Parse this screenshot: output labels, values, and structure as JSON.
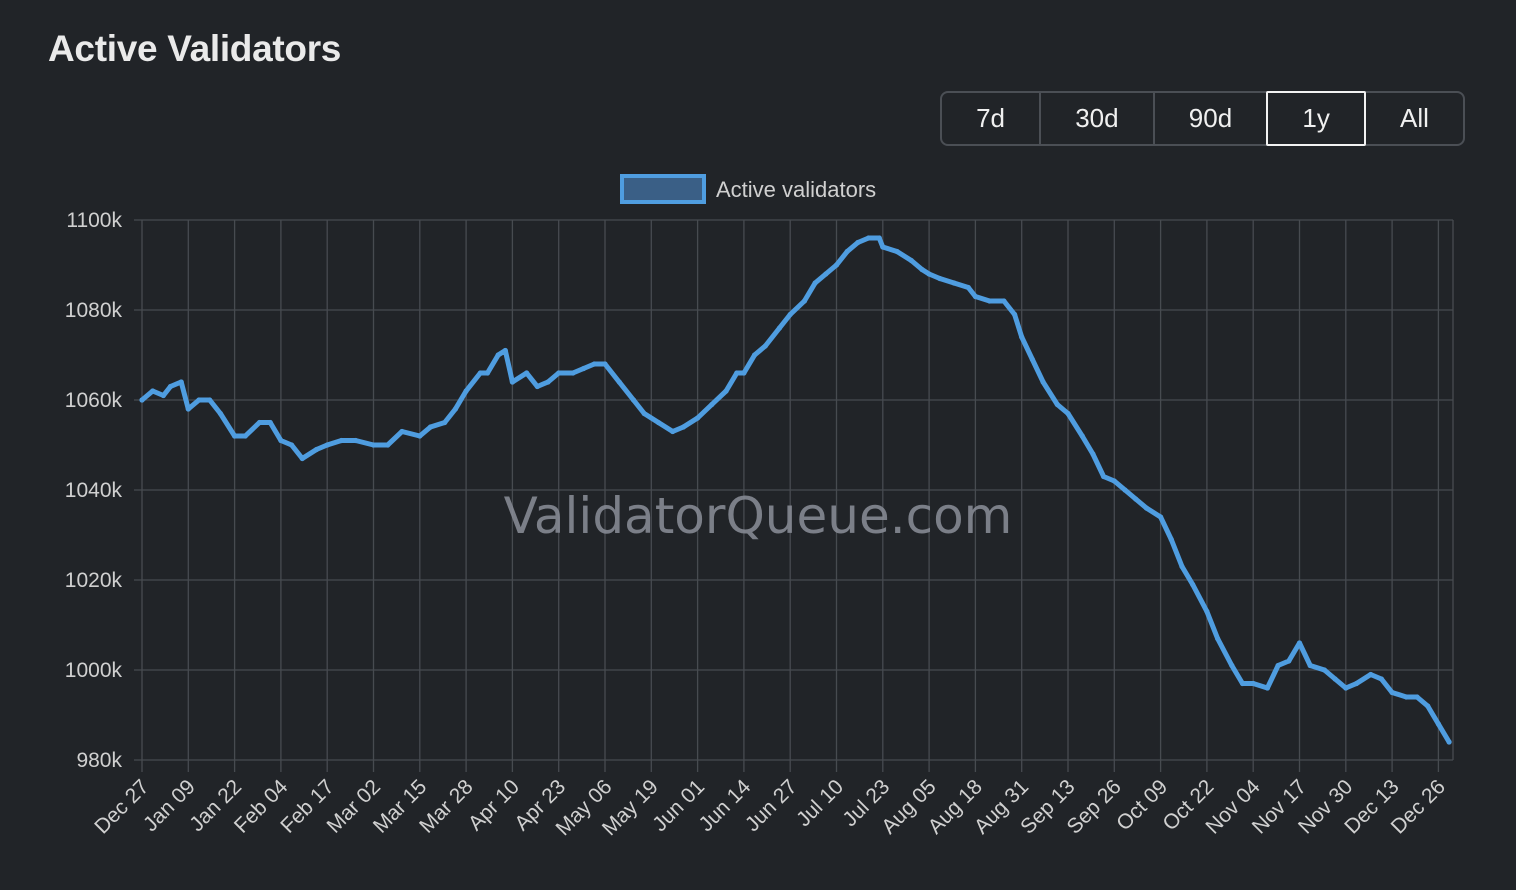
{
  "title": "Active Validators",
  "ranges": [
    {
      "label": "7d",
      "active": false
    },
    {
      "label": "30d",
      "active": false
    },
    {
      "label": "90d",
      "active": false
    },
    {
      "label": "1y",
      "active": true
    },
    {
      "label": "All",
      "active": false
    }
  ],
  "watermark": "ValidatorQueue.com",
  "colors": {
    "background": "#212428",
    "series_line": "#4f9de0",
    "legend_fill": "#3a5f86",
    "grid": "#474b50",
    "text": "#d0d0d0"
  },
  "chart_data": {
    "type": "line",
    "legend_position": "top-center",
    "grid": true,
    "ylim": [
      980,
      1100
    ],
    "y_ticks": [
      "1100k",
      "1080k",
      "1060k",
      "1040k",
      "1020k",
      "1000k",
      "980k"
    ],
    "y_tick_values": [
      1100,
      1080,
      1060,
      1040,
      1020,
      1000,
      980
    ],
    "x_tick_labels": [
      "Dec 27",
      "Jan 09",
      "Jan 22",
      "Feb 04",
      "Feb 17",
      "Mar 02",
      "Mar 15",
      "Mar 28",
      "Apr 10",
      "Apr 23",
      "May 06",
      "May 19",
      "Jun 01",
      "Jun 14",
      "Jun 27",
      "Jul 10",
      "Jul 23",
      "Aug 05",
      "Aug 18",
      "Aug 31",
      "Sep 13",
      "Sep 26",
      "Oct 09",
      "Oct 22",
      "Nov 04",
      "Nov 17",
      "Nov 30",
      "Dec 13",
      "Dec 26"
    ],
    "series": [
      {
        "name": "Active validators",
        "points": [
          [
            "Dec 27",
            1060
          ],
          [
            "Dec 30",
            1062
          ],
          [
            "Jan 02",
            1061
          ],
          [
            "Jan 04",
            1063
          ],
          [
            "Jan 07",
            1064
          ],
          [
            "Jan 09",
            1058
          ],
          [
            "Jan 12",
            1060
          ],
          [
            "Jan 15",
            1060
          ],
          [
            "Jan 18",
            1057
          ],
          [
            "Jan 22",
            1052
          ],
          [
            "Jan 25",
            1052
          ],
          [
            "Jan 29",
            1055
          ],
          [
            "Feb 01",
            1055
          ],
          [
            "Feb 04",
            1051
          ],
          [
            "Feb 07",
            1050
          ],
          [
            "Feb 10",
            1047
          ],
          [
            "Feb 14",
            1049
          ],
          [
            "Feb 17",
            1050
          ],
          [
            "Feb 21",
            1051
          ],
          [
            "Feb 25",
            1051
          ],
          [
            "Mar 02",
            1050
          ],
          [
            "Mar 06",
            1050
          ],
          [
            "Mar 10",
            1053
          ],
          [
            "Mar 15",
            1052
          ],
          [
            "Mar 18",
            1054
          ],
          [
            "Mar 22",
            1055
          ],
          [
            "Mar 25",
            1058
          ],
          [
            "Mar 28",
            1062
          ],
          [
            "Apr 01",
            1066
          ],
          [
            "Apr 03",
            1066
          ],
          [
            "Apr 06",
            1070
          ],
          [
            "Apr 08",
            1071
          ],
          [
            "Apr 10",
            1064
          ],
          [
            "Apr 14",
            1066
          ],
          [
            "Apr 17",
            1063
          ],
          [
            "Apr 20",
            1064
          ],
          [
            "Apr 23",
            1066
          ],
          [
            "Apr 27",
            1066
          ],
          [
            "Apr 30",
            1067
          ],
          [
            "May 03",
            1068
          ],
          [
            "May 06",
            1068
          ],
          [
            "May 10",
            1064
          ],
          [
            "May 14",
            1060
          ],
          [
            "May 17",
            1057
          ],
          [
            "May 21",
            1055
          ],
          [
            "May 25",
            1053
          ],
          [
            "May 28",
            1054
          ],
          [
            "Jun 01",
            1056
          ],
          [
            "Jun 05",
            1059
          ],
          [
            "Jun 09",
            1062
          ],
          [
            "Jun 12",
            1066
          ],
          [
            "Jun 14",
            1066
          ],
          [
            "Jun 17",
            1070
          ],
          [
            "Jun 20",
            1072
          ],
          [
            "Jun 24",
            1076
          ],
          [
            "Jun 27",
            1079
          ],
          [
            "Jul 01",
            1082
          ],
          [
            "Jul 04",
            1086
          ],
          [
            "Jul 07",
            1088
          ],
          [
            "Jul 10",
            1090
          ],
          [
            "Jul 13",
            1093
          ],
          [
            "Jul 16",
            1095
          ],
          [
            "Jul 19",
            1096
          ],
          [
            "Jul 22",
            1096
          ],
          [
            "Jul 23",
            1094
          ],
          [
            "Jul 27",
            1093
          ],
          [
            "Jul 31",
            1091
          ],
          [
            "Aug 03",
            1089
          ],
          [
            "Aug 05",
            1088
          ],
          [
            "Aug 08",
            1087
          ],
          [
            "Aug 12",
            1086
          ],
          [
            "Aug 16",
            1085
          ],
          [
            "Aug 18",
            1083
          ],
          [
            "Aug 22",
            1082
          ],
          [
            "Aug 26",
            1082
          ],
          [
            "Aug 29",
            1079
          ],
          [
            "Aug 31",
            1074
          ],
          [
            "Sep 03",
            1069
          ],
          [
            "Sep 06",
            1064
          ],
          [
            "Sep 10",
            1059
          ],
          [
            "Sep 13",
            1057
          ],
          [
            "Sep 17",
            1052
          ],
          [
            "Sep 20",
            1048
          ],
          [
            "Sep 23",
            1043
          ],
          [
            "Sep 26",
            1042
          ],
          [
            "Sep 29",
            1040
          ],
          [
            "Oct 02",
            1038
          ],
          [
            "Oct 05",
            1036
          ],
          [
            "Oct 09",
            1034
          ],
          [
            "Oct 12",
            1029
          ],
          [
            "Oct 15",
            1023
          ],
          [
            "Oct 18",
            1019
          ],
          [
            "Oct 22",
            1013
          ],
          [
            "Oct 25",
            1007
          ],
          [
            "Oct 29",
            1001
          ],
          [
            "Nov 01",
            997
          ],
          [
            "Nov 04",
            997
          ],
          [
            "Nov 08",
            996
          ],
          [
            "Nov 11",
            1001
          ],
          [
            "Nov 14",
            1002
          ],
          [
            "Nov 17",
            1006
          ],
          [
            "Nov 20",
            1001
          ],
          [
            "Nov 24",
            1000
          ],
          [
            "Nov 27",
            998
          ],
          [
            "Nov 30",
            996
          ],
          [
            "Dec 03",
            997
          ],
          [
            "Dec 07",
            999
          ],
          [
            "Dec 10",
            998
          ],
          [
            "Dec 13",
            995
          ],
          [
            "Dec 17",
            994
          ],
          [
            "Dec 20",
            994
          ],
          [
            "Dec 23",
            992
          ],
          [
            "Dec 26",
            988
          ],
          [
            "Dec 29",
            984
          ]
        ]
      }
    ]
  }
}
